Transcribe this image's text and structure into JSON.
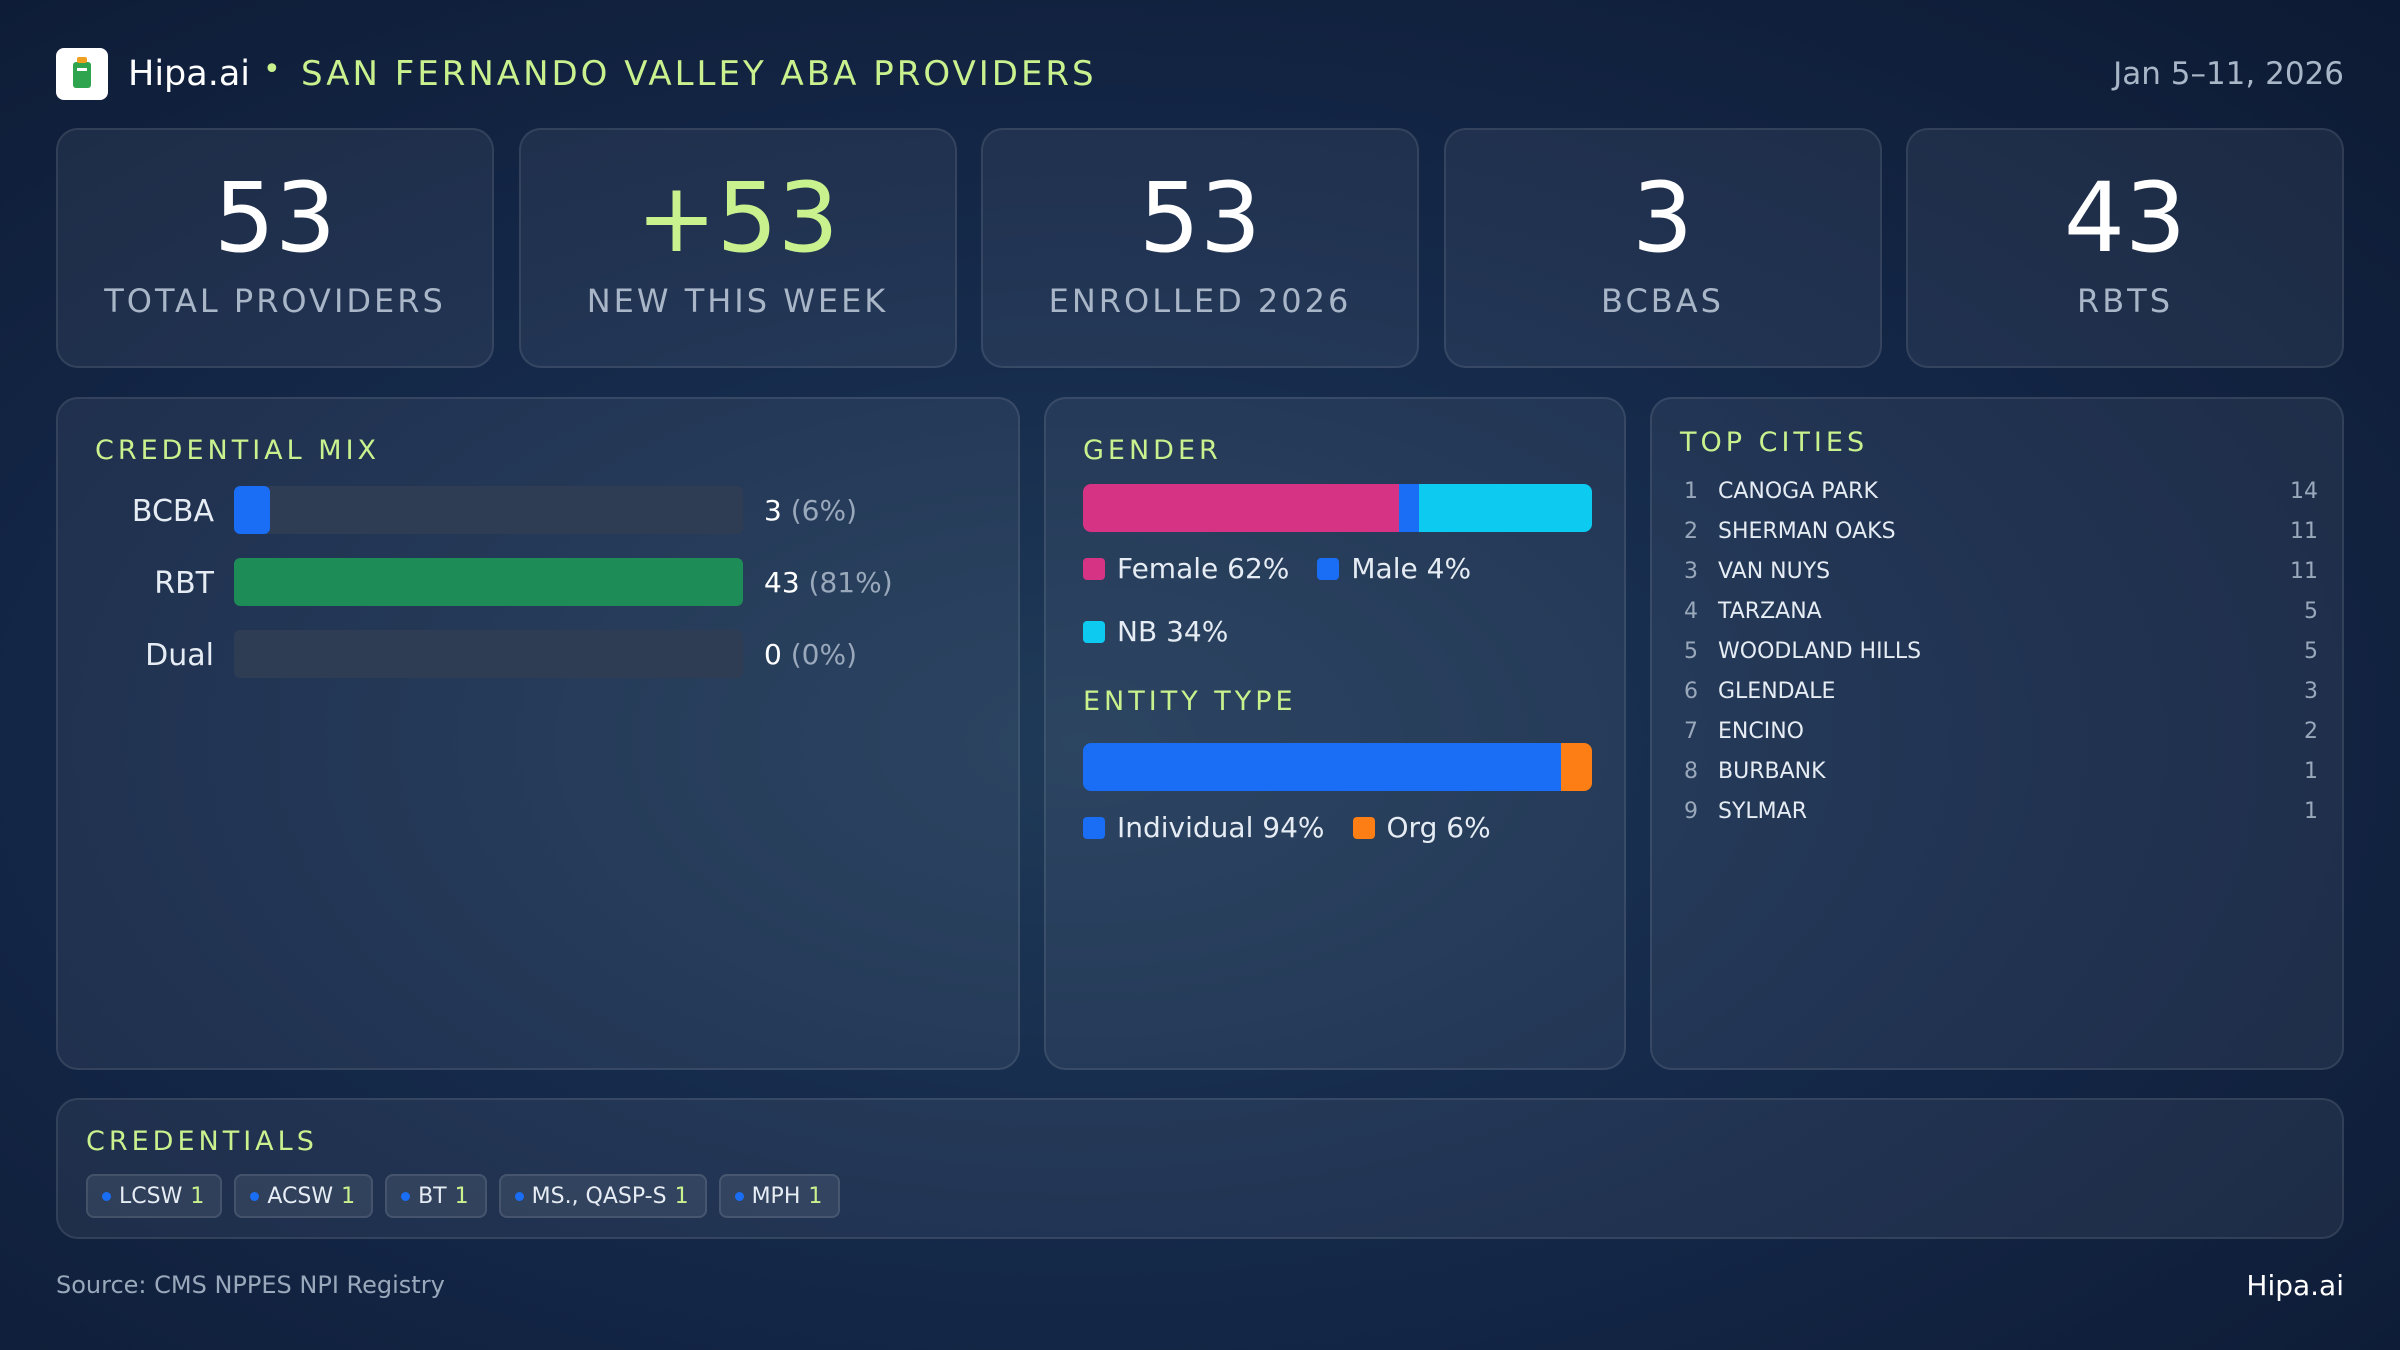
{
  "header": {
    "brand": "Hipa.ai",
    "title": "SAN FERNANDO VALLEY ABA PROVIDERS",
    "date": "Jan 5–11, 2026"
  },
  "kpis": [
    {
      "value": 53,
      "label": "TOTAL PROVIDERS"
    },
    {
      "value": "+53",
      "label": "NEW THIS WEEK",
      "accent": true
    },
    {
      "value": 53,
      "label": "ENROLLED 2026"
    },
    {
      "value": 3,
      "label": "BCBAS"
    },
    {
      "value": 43,
      "label": "RBTS"
    }
  ],
  "credential_mix": {
    "title": "CREDENTIAL MIX",
    "rows": [
      {
        "name": "BCBA",
        "value": 3,
        "pct_label": "(6%)",
        "color": "#1a6ef5"
      },
      {
        "name": "RBT",
        "value": 43,
        "pct_label": "(81%)",
        "color": "#1e8c57"
      },
      {
        "name": "Dual",
        "value": 0,
        "pct_label": "(0%)",
        "color": "#7a5af5"
      }
    ]
  },
  "gender": {
    "title": "GENDER",
    "series": [
      {
        "name": "Female",
        "value": 62,
        "value_label": "62%",
        "color": "#d63384"
      },
      {
        "name": "Male",
        "value": 4,
        "value_label": "4%",
        "color": "#1a6ef5"
      },
      {
        "name": "NB",
        "value": 34,
        "value_label": "34%",
        "color": "#0dcaf0"
      }
    ]
  },
  "entity_type": {
    "title": "ENTITY TYPE",
    "series": [
      {
        "name": "Individual",
        "value": 94,
        "value_label": "94%",
        "color": "#1a6ef5"
      },
      {
        "name": "Org",
        "value": 6,
        "value_label": "6%",
        "color": "#fd7e14"
      }
    ]
  },
  "top_cities": {
    "title": "TOP CITIES",
    "rows": [
      {
        "rank": 1,
        "name": "CANOGA PARK",
        "count": 14
      },
      {
        "rank": 2,
        "name": "SHERMAN OAKS",
        "count": 11
      },
      {
        "rank": 3,
        "name": "VAN NUYS",
        "count": 11
      },
      {
        "rank": 4,
        "name": "TARZANA",
        "count": 5
      },
      {
        "rank": 5,
        "name": "WOODLAND HILLS",
        "count": 5
      },
      {
        "rank": 6,
        "name": "GLENDALE",
        "count": 3
      },
      {
        "rank": 7,
        "name": "ENCINO",
        "count": 2
      },
      {
        "rank": 8,
        "name": "BURBANK",
        "count": 1
      },
      {
        "rank": 9,
        "name": "SYLMAR",
        "count": 1
      }
    ]
  },
  "credentials": {
    "title": "CREDENTIALS",
    "chips": [
      {
        "name": "LCSW",
        "count": 1
      },
      {
        "name": "ACSW",
        "count": 1
      },
      {
        "name": "BT",
        "count": 1
      },
      {
        "name": "MS., QASP-S",
        "count": 1
      },
      {
        "name": "MPH",
        "count": 1
      }
    ]
  },
  "footer": {
    "source": "Source: CMS NPPES NPI Registry",
    "brand": "Hipa.ai"
  }
}
